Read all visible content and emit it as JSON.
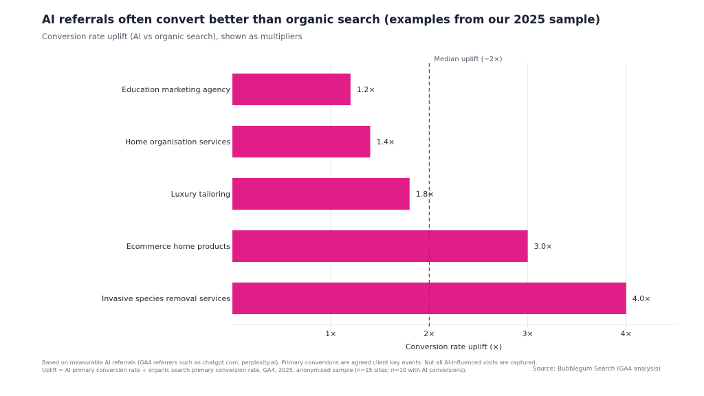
{
  "header": {
    "title": "AI referrals often convert better than organic search (examples from our 2025 sample)",
    "subtitle": "Conversion rate uplift (AI vs organic search), shown as multipliers"
  },
  "footer": {
    "note_line1": "Based on measurable AI referrals (GA4 referrers such as chatgpt.com, perplexity.ai). Primary conversions are agreed client key events. Not all AI-influenced visits are captured.",
    "note_line2": "Uplift = AI primary conversion rate ÷ organic search primary conversion rate. GA4, 2025, anonymised sample (n=15 sites; n=10 with AI conversions).",
    "source": "Source: Bubblegum Search (GA4 analysis)"
  },
  "colors": {
    "bar": "#e11d87",
    "grid": "#e5e7eb",
    "median_line": "#4b5563",
    "text": "#1f2937",
    "muted": "#6b7280"
  },
  "chart_data": {
    "type": "bar",
    "orientation": "horizontal",
    "title": "AI referrals often convert better than organic search (examples from our 2025 sample)",
    "xlabel": "Conversion rate uplift (×)",
    "ylabel": "",
    "xlim": [
      0,
      4.5
    ],
    "grid": true,
    "categories": [
      "Education marketing agency",
      "Home organisation services",
      "Luxury tailoring",
      "Ecommerce home products",
      "Invasive species removal services"
    ],
    "values": [
      1.2,
      1.4,
      1.8,
      3.0,
      4.0
    ],
    "data_labels": [
      "1.2×",
      "1.4×",
      "1.8×",
      "3.0×",
      "4.0×"
    ],
    "xticks": [
      1,
      2,
      3,
      4
    ],
    "xtick_labels": [
      "1×",
      "2×",
      "3×",
      "4×"
    ],
    "reference_line": {
      "value": 2,
      "label": "Median uplift (~2×)",
      "style": "dashed"
    }
  }
}
